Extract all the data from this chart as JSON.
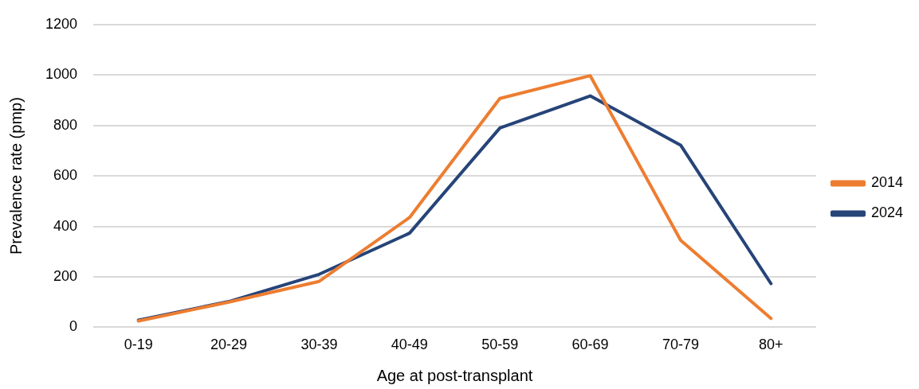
{
  "chart_data": {
    "type": "line",
    "xlabel": "Age at post-transplant",
    "ylabel": "Prevalence rate (pmp)",
    "categories": [
      "0-19",
      "20-29",
      "30-39",
      "40-49",
      "50-59",
      "60-69",
      "70-79",
      "80+"
    ],
    "series": [
      {
        "name": "2014",
        "color": "#ed7d31",
        "values": [
          25,
          100,
          182,
          435,
          907,
          997,
          345,
          35
        ]
      },
      {
        "name": "2024",
        "color": "#264478",
        "values": [
          28,
          102,
          210,
          373,
          790,
          917,
          722,
          173
        ]
      }
    ],
    "ylim": [
      0,
      1200
    ],
    "yticks": [
      0,
      200,
      400,
      600,
      800,
      1000,
      1200
    ],
    "grid": "y",
    "legend": "right",
    "marker": "none"
  }
}
